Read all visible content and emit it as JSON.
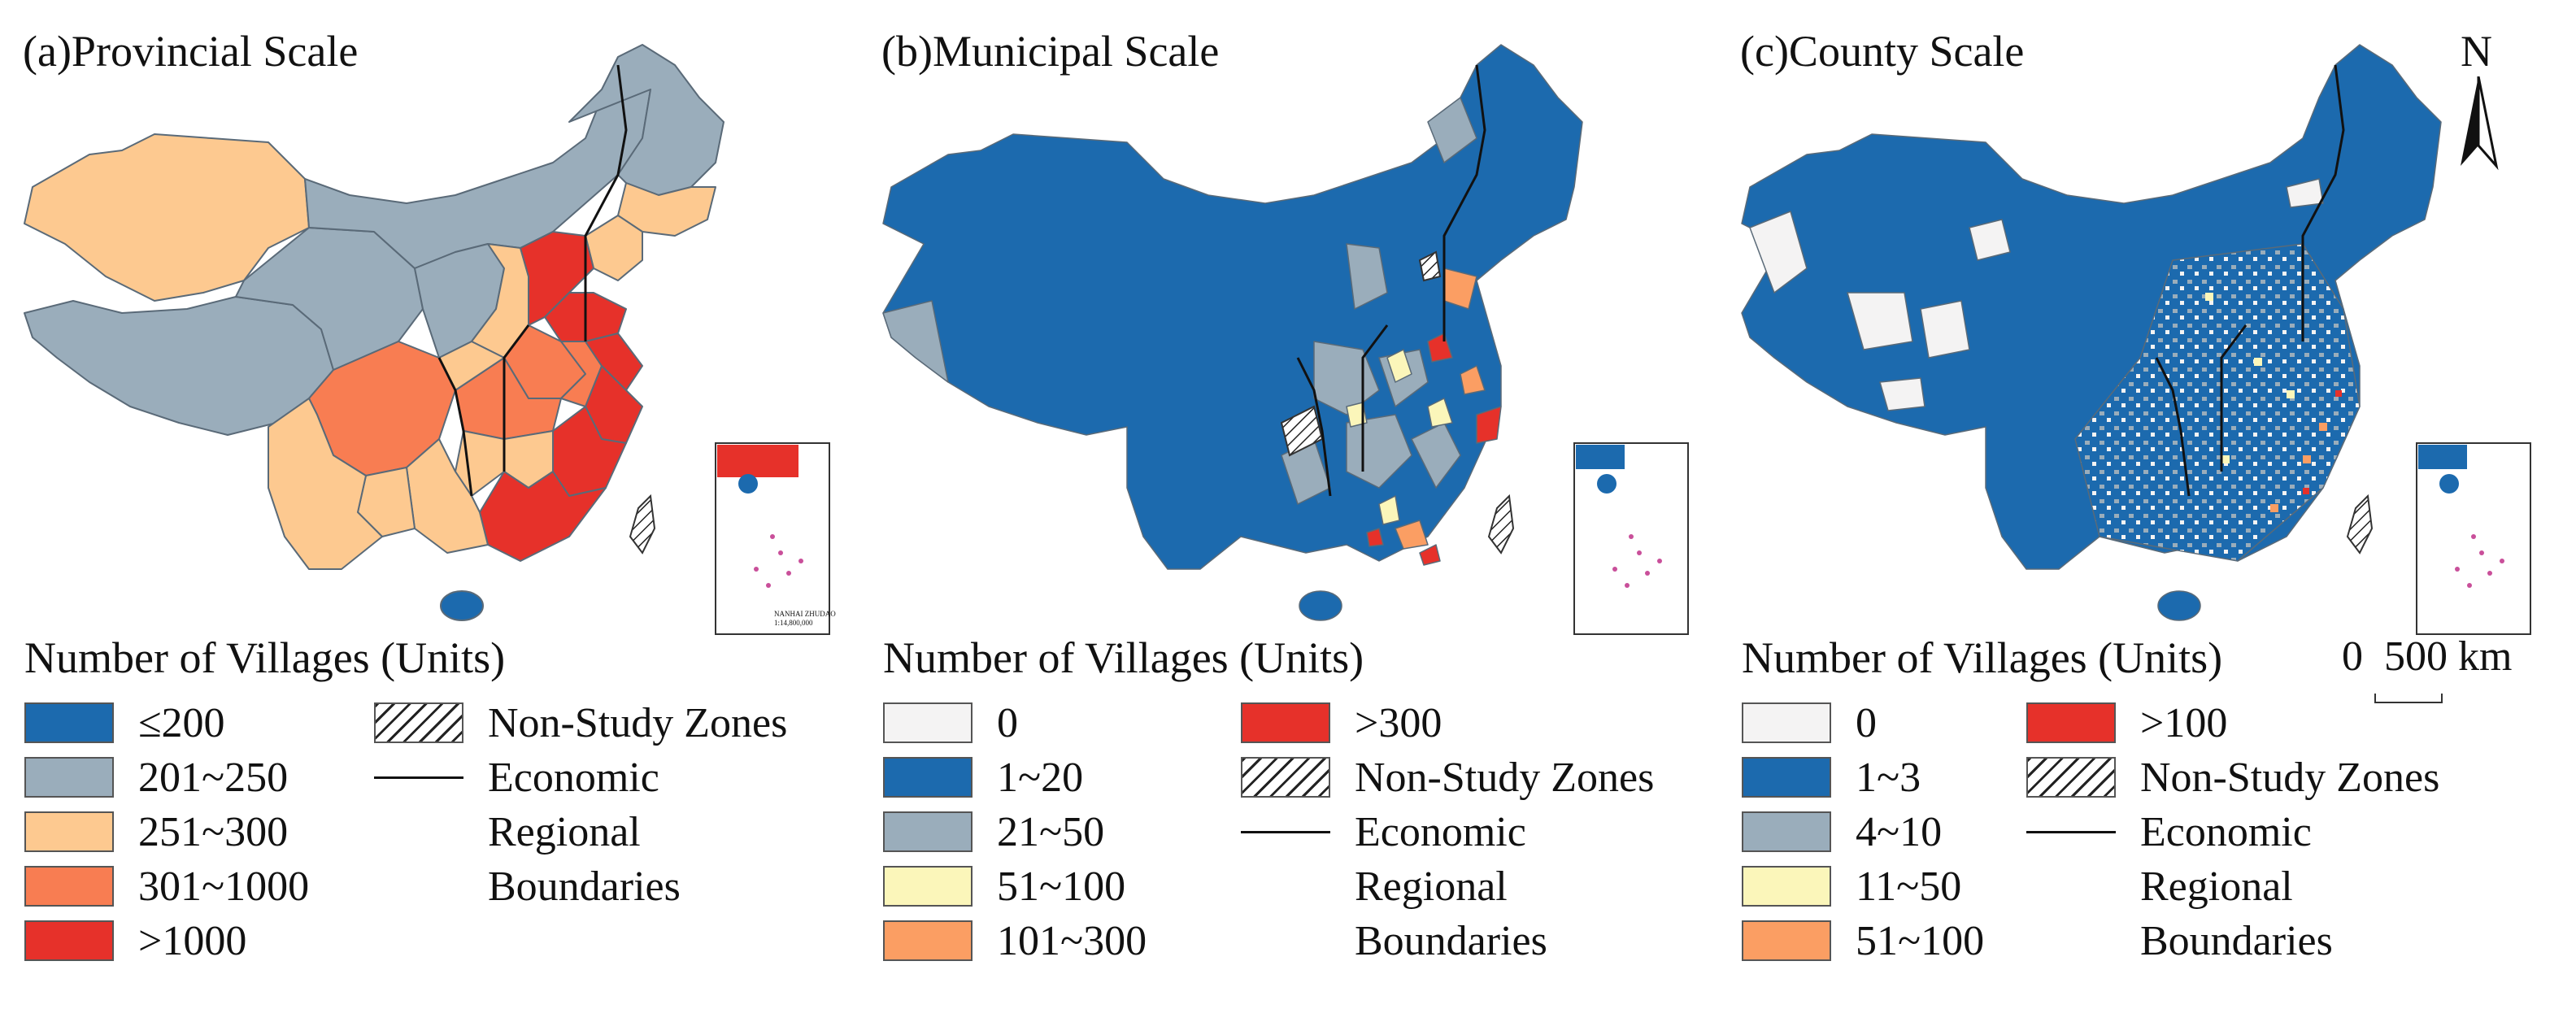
{
  "colors": {
    "dark_blue": "#1c6aae",
    "grey_blue": "#9aadbb",
    "peach": "#fdc990",
    "orange": "#f87d52",
    "red": "#e6312a",
    "near_white": "#f4f3f3",
    "pale_yellow": "#fbf6ba",
    "light_orange": "#fb9e63"
  },
  "panels": [
    {
      "title": "(a)Provincial Scale",
      "legend_title": "Number of Villages (Units)",
      "legend_left": [
        {
          "label": "≤200",
          "color": "#1c6aae"
        },
        {
          "label": "201~250",
          "color": "#9aadbb"
        },
        {
          "label": "251~300",
          "color": "#fdc990"
        },
        {
          "label": "301~1000",
          "color": "#f87d52"
        },
        {
          "label": ">1000",
          "color": "#e6312a"
        }
      ],
      "legend_right": {
        "non_study": "Non-Study Zones",
        "boundary": "Economic\nRegional\nBoundaries"
      }
    },
    {
      "title": "(b)Municipal Scale",
      "legend_title": "Number of Villages (Units)",
      "legend_left": [
        {
          "label": "0",
          "color": "#f4f3f3"
        },
        {
          "label": "1~20",
          "color": "#1c6aae"
        },
        {
          "label": "21~50",
          "color": "#9aadbb"
        },
        {
          "label": "51~100",
          "color": "#fbf6ba"
        },
        {
          "label": "101~300",
          "color": "#fb9e63"
        }
      ],
      "legend_right": {
        "top": {
          "label": ">300",
          "color": "#e6312a"
        },
        "non_study": "Non-Study Zones",
        "boundary": "Economic\nRegional\nBoundaries"
      }
    },
    {
      "title": "(c)County Scale",
      "legend_title": "Number of Villages (Units)",
      "legend_left": [
        {
          "label": "0",
          "color": "#f4f3f3"
        },
        {
          "label": "1~3",
          "color": "#1c6aae"
        },
        {
          "label": "4~10",
          "color": "#9aadbb"
        },
        {
          "label": "11~50",
          "color": "#fbf6ba"
        },
        {
          "label": "51~100",
          "color": "#fb9e63"
        }
      ],
      "legend_right": {
        "top": {
          "label": ">100",
          "color": "#e6312a"
        },
        "non_study": "Non-Study Zones",
        "boundary": "Economic\nRegional\nBoundaries"
      }
    }
  ],
  "compass": {
    "letter": "N"
  },
  "scale_bar": {
    "label": "0  500 km"
  },
  "inset": {
    "caption_line1": "NANHAI ZHUDAO",
    "caption_line2": "1:14,800,000"
  }
}
